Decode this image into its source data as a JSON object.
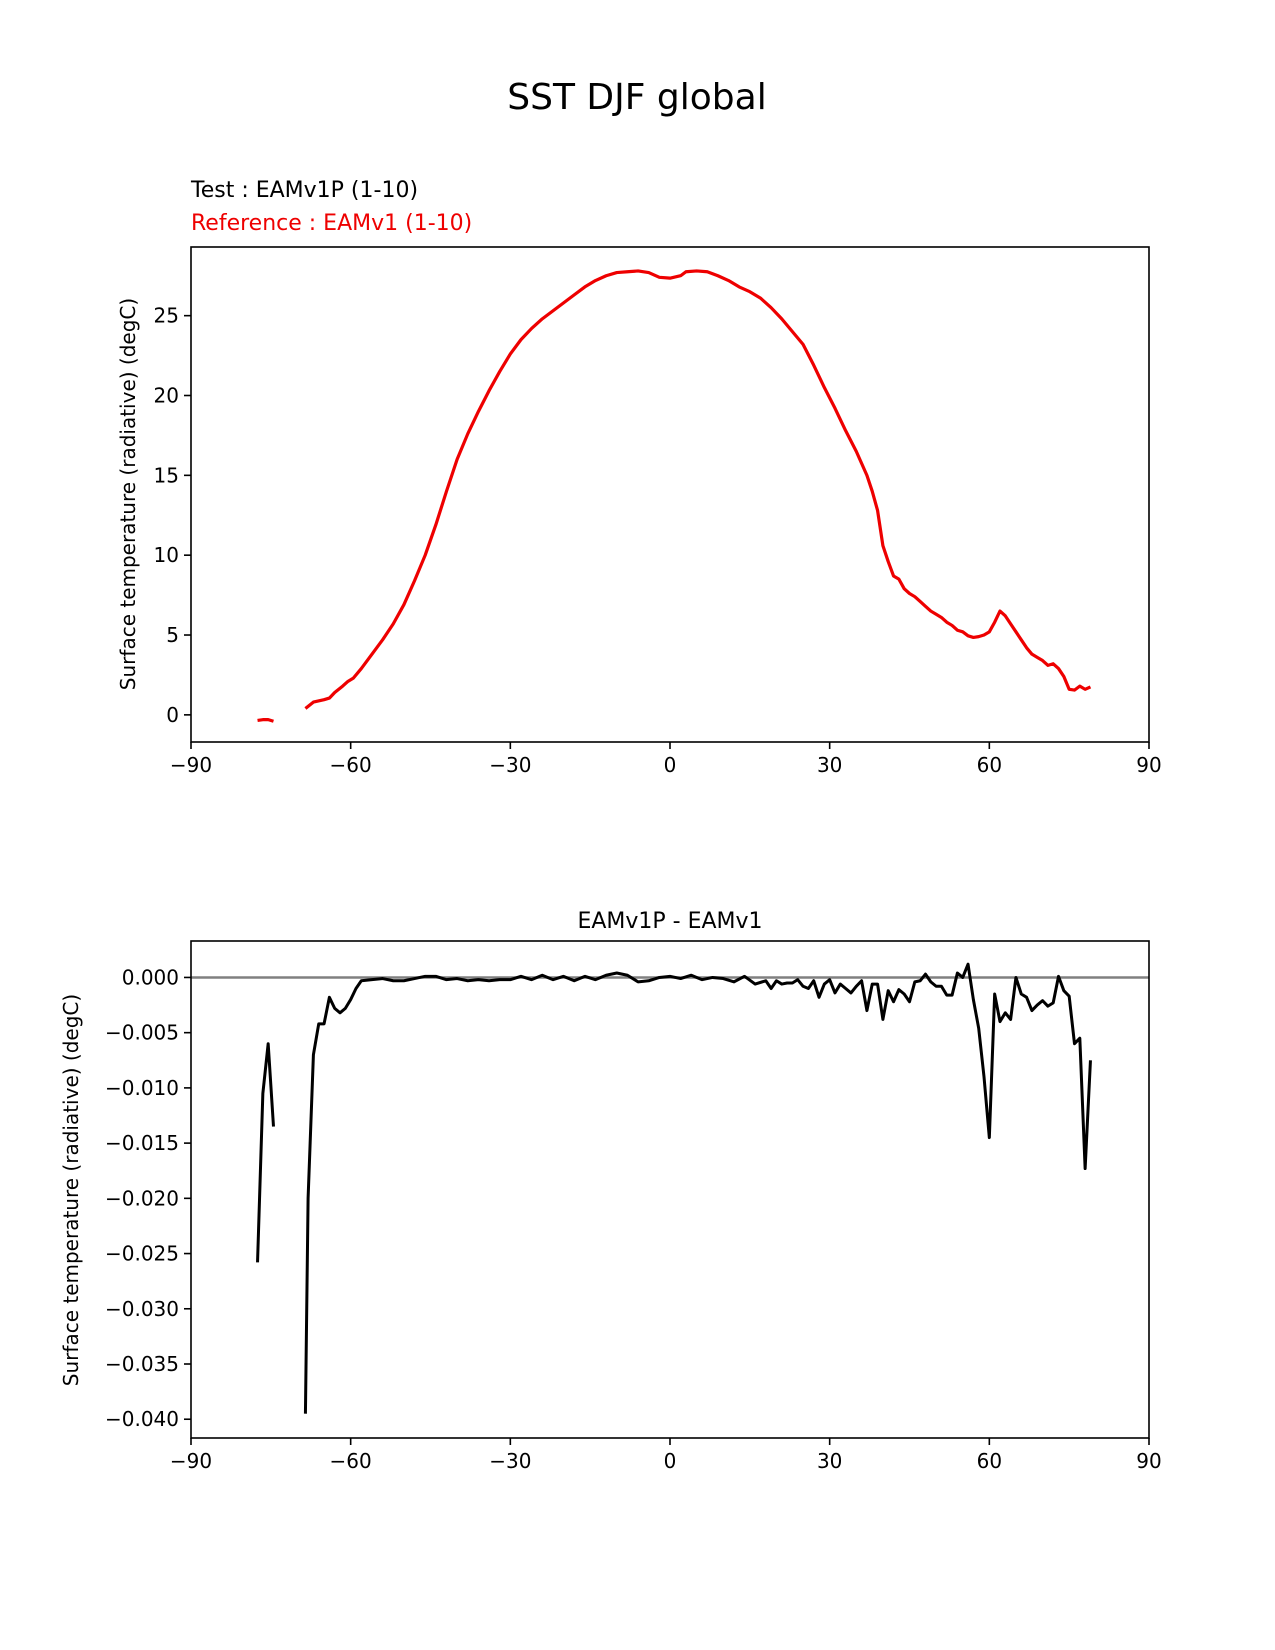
{
  "figure_title": "SST DJF global",
  "legend": {
    "test_label": "Test : EAMv1P (1-10)",
    "reference_label": "Reference : EAMv1 (1-10)"
  },
  "colors": {
    "test": "#000000",
    "reference": "#ee0000",
    "diff": "#000000",
    "zero_line": "#808080",
    "axes": "#000000"
  },
  "chart_data": [
    {
      "type": "line",
      "title": "",
      "xlabel": "",
      "ylabel": "Surface temperature (radiative) (degC)",
      "xlim": [
        -90,
        90
      ],
      "ylim": [
        -1.7,
        29.3
      ],
      "xticks": [
        -90,
        -60,
        -30,
        0,
        30,
        60,
        90
      ],
      "xtick_labels": [
        "−90",
        "−60",
        "−30",
        "0",
        "30",
        "60",
        "90"
      ],
      "yticks": [
        0,
        5,
        10,
        15,
        20,
        25
      ],
      "ytick_labels": [
        "0",
        "5",
        "10",
        "15",
        "20",
        "25"
      ],
      "grid": false,
      "series": [
        {
          "name": "Reference : EAMv1 (1-10)",
          "segments": [
            [
              [
                -77.5,
                -0.35
              ],
              [
                -76.5,
                -0.3
              ],
              [
                -75.5,
                -0.3
              ],
              [
                -74.5,
                -0.4
              ]
            ],
            [
              [
                -68.5,
                0.4
              ],
              [
                -67,
                0.8
              ],
              [
                -65,
                0.95
              ],
              [
                -64,
                1.05
              ],
              [
                -63,
                1.4
              ],
              [
                -61.5,
                1.8
              ],
              [
                -60.5,
                2.1
              ],
              [
                -59.5,
                2.3
              ],
              [
                -58,
                2.9
              ],
              [
                -56,
                3.8
              ],
              [
                -54,
                4.7
              ],
              [
                -52,
                5.7
              ],
              [
                -50,
                6.9
              ],
              [
                -48,
                8.4
              ],
              [
                -46,
                10.0
              ],
              [
                -44,
                11.9
              ],
              [
                -42,
                14.0
              ],
              [
                -40,
                16.0
              ],
              [
                -38,
                17.6
              ],
              [
                -36,
                19.0
              ],
              [
                -34,
                20.3
              ],
              [
                -32,
                21.5
              ],
              [
                -30,
                22.6
              ],
              [
                -28,
                23.5
              ],
              [
                -26,
                24.2
              ],
              [
                -24,
                24.8
              ],
              [
                -22,
                25.3
              ],
              [
                -20,
                25.8
              ],
              [
                -18,
                26.3
              ],
              [
                -16,
                26.8
              ],
              [
                -14,
                27.2
              ],
              [
                -12,
                27.5
              ],
              [
                -10,
                27.7
              ],
              [
                -8,
                27.75
              ],
              [
                -6,
                27.8
              ],
              [
                -4,
                27.7
              ],
              [
                -2,
                27.4
              ],
              [
                0,
                27.35
              ],
              [
                2,
                27.5
              ],
              [
                3,
                27.75
              ],
              [
                5,
                27.8
              ],
              [
                7,
                27.75
              ],
              [
                9,
                27.5
              ],
              [
                11,
                27.2
              ],
              [
                13,
                26.8
              ],
              [
                15,
                26.5
              ],
              [
                17,
                26.1
              ],
              [
                19,
                25.5
              ],
              [
                21,
                24.8
              ],
              [
                23,
                24.0
              ],
              [
                25,
                23.2
              ],
              [
                27,
                21.9
              ],
              [
                29,
                20.5
              ],
              [
                31,
                19.2
              ],
              [
                33,
                17.8
              ],
              [
                35,
                16.5
              ],
              [
                37,
                15.0
              ],
              [
                38,
                14.0
              ],
              [
                39,
                12.8
              ],
              [
                40,
                10.6
              ],
              [
                41,
                9.6
              ],
              [
                42,
                8.7
              ],
              [
                43,
                8.5
              ],
              [
                44,
                7.9
              ],
              [
                45,
                7.6
              ],
              [
                46,
                7.4
              ],
              [
                47,
                7.1
              ],
              [
                48,
                6.8
              ],
              [
                49,
                6.5
              ],
              [
                50,
                6.3
              ],
              [
                51,
                6.1
              ],
              [
                52,
                5.8
              ],
              [
                53,
                5.6
              ],
              [
                54,
                5.3
              ],
              [
                55,
                5.2
              ],
              [
                56,
                4.95
              ],
              [
                57,
                4.85
              ],
              [
                58,
                4.9
              ],
              [
                59,
                5.0
              ],
              [
                60,
                5.2
              ],
              [
                61,
                5.8
              ],
              [
                62,
                6.5
              ],
              [
                63,
                6.2
              ],
              [
                64,
                5.7
              ],
              [
                65,
                5.2
              ],
              [
                66,
                4.7
              ],
              [
                67,
                4.2
              ],
              [
                68,
                3.8
              ],
              [
                69,
                3.6
              ],
              [
                70,
                3.4
              ],
              [
                71,
                3.1
              ],
              [
                72,
                3.2
              ],
              [
                73,
                2.9
              ],
              [
                74,
                2.4
              ],
              [
                75,
                1.6
              ],
              [
                76,
                1.55
              ],
              [
                77,
                1.8
              ],
              [
                78,
                1.6
              ],
              [
                79,
                1.75
              ]
            ]
          ]
        }
      ]
    },
    {
      "type": "line",
      "title": "EAMv1P - EAMv1",
      "xlabel": "",
      "ylabel": "Surface temperature (radiative) (degC)",
      "xlim": [
        -90,
        90
      ],
      "ylim": [
        -0.0417,
        0.0033
      ],
      "xticks": [
        -90,
        -60,
        -30,
        0,
        30,
        60,
        90
      ],
      "xtick_labels": [
        "−90",
        "−60",
        "−30",
        "0",
        "30",
        "60",
        "90"
      ],
      "yticks": [
        0,
        -0.005,
        -0.01,
        -0.015,
        -0.02,
        -0.025,
        -0.03,
        -0.035,
        -0.04
      ],
      "ytick_labels": [
        "0.000",
        "−0.005",
        "−0.010",
        "−0.015",
        "−0.020",
        "−0.025",
        "−0.030",
        "−0.035",
        "−0.040"
      ],
      "grid": false,
      "zero_line": true,
      "series": [
        {
          "segments": [
            [
              [
                -77.5,
                -0.0258
              ],
              [
                -76.5,
                -0.0105
              ],
              [
                -75.5,
                -0.006
              ],
              [
                -74.5,
                -0.0135
              ]
            ],
            [
              [
                -68.5,
                -0.0395
              ],
              [
                -68,
                -0.02
              ],
              [
                -67,
                -0.007
              ],
              [
                -66,
                -0.0042
              ],
              [
                -65,
                -0.0042
              ],
              [
                -64,
                -0.0018
              ],
              [
                -63,
                -0.0028
              ],
              [
                -62,
                -0.0032
              ],
              [
                -61,
                -0.0028
              ],
              [
                -60,
                -0.002
              ],
              [
                -59,
                -0.001
              ],
              [
                -58,
                -0.0003
              ],
              [
                -56,
                -0.0002
              ],
              [
                -54,
                -0.0001
              ],
              [
                -52,
                -0.0003
              ],
              [
                -50,
                -0.0003
              ],
              [
                -48,
                -0.0001
              ],
              [
                -46,
                0.0001
              ],
              [
                -44,
                0.0001
              ],
              [
                -42,
                -0.0002
              ],
              [
                -40,
                -0.0001
              ],
              [
                -38,
                -0.0003
              ],
              [
                -36,
                -0.0002
              ],
              [
                -34,
                -0.0003
              ],
              [
                -32,
                -0.0002
              ],
              [
                -30,
                -0.0002
              ],
              [
                -28,
                0.0001
              ],
              [
                -26,
                -0.0002
              ],
              [
                -24,
                0.0002
              ],
              [
                -22,
                -0.0002
              ],
              [
                -20,
                0.0001
              ],
              [
                -18,
                -0.0003
              ],
              [
                -16,
                0.0001
              ],
              [
                -14,
                -0.0002
              ],
              [
                -12,
                0.0002
              ],
              [
                -10,
                0.0004
              ],
              [
                -8,
                0.0002
              ],
              [
                -6,
                -0.0004
              ],
              [
                -4,
                -0.0003
              ],
              [
                -2,
                0.0
              ],
              [
                0,
                0.0001
              ],
              [
                2,
                -0.0001
              ],
              [
                4,
                0.0002
              ],
              [
                6,
                -0.0002
              ],
              [
                8,
                0.0
              ],
              [
                10,
                -0.0001
              ],
              [
                12,
                -0.0004
              ],
              [
                14,
                0.0001
              ],
              [
                16,
                -0.0006
              ],
              [
                18,
                -0.0003
              ],
              [
                19,
                -0.001
              ],
              [
                20,
                -0.0003
              ],
              [
                21,
                -0.0006
              ],
              [
                22,
                -0.0005
              ],
              [
                23,
                -0.0005
              ],
              [
                24,
                -0.0002
              ],
              [
                25,
                -0.0008
              ],
              [
                26,
                -0.001
              ],
              [
                27,
                -0.0003
              ],
              [
                28,
                -0.0018
              ],
              [
                29,
                -0.0006
              ],
              [
                30,
                -0.0002
              ],
              [
                31,
                -0.0014
              ],
              [
                32,
                -0.0006
              ],
              [
                33,
                -0.001
              ],
              [
                34,
                -0.0014
              ],
              [
                35,
                -0.0008
              ],
              [
                36,
                -0.0003
              ],
              [
                37,
                -0.003
              ],
              [
                38,
                -0.0006
              ],
              [
                39,
                -0.0006
              ],
              [
                40,
                -0.0038
              ],
              [
                41,
                -0.0012
              ],
              [
                42,
                -0.0022
              ],
              [
                43,
                -0.0011
              ],
              [
                44,
                -0.0015
              ],
              [
                45,
                -0.0022
              ],
              [
                46,
                -0.0004
              ],
              [
                47,
                -0.0003
              ],
              [
                48,
                0.0003
              ],
              [
                49,
                -0.0004
              ],
              [
                50,
                -0.0008
              ],
              [
                51,
                -0.0008
              ],
              [
                52,
                -0.0016
              ],
              [
                53,
                -0.0016
              ],
              [
                54,
                0.0004
              ],
              [
                55,
                0.0
              ],
              [
                56,
                0.0012
              ],
              [
                57,
                -0.002
              ],
              [
                58,
                -0.0046
              ],
              [
                59,
                -0.009
              ],
              [
                60,
                -0.0145
              ],
              [
                61,
                -0.0015
              ],
              [
                62,
                -0.004
              ],
              [
                63,
                -0.0032
              ],
              [
                64,
                -0.0038
              ],
              [
                65,
                0.0
              ],
              [
                66,
                -0.0015
              ],
              [
                67,
                -0.0018
              ],
              [
                68,
                -0.003
              ],
              [
                69,
                -0.0025
              ],
              [
                70,
                -0.0021
              ],
              [
                71,
                -0.0026
              ],
              [
                72,
                -0.0023
              ],
              [
                73,
                0.0001
              ],
              [
                74,
                -0.0012
              ],
              [
                75,
                -0.0017
              ],
              [
                76,
                -0.006
              ],
              [
                77,
                -0.0055
              ],
              [
                78,
                -0.0173
              ],
              [
                79,
                -0.0075
              ]
            ]
          ]
        }
      ]
    }
  ]
}
